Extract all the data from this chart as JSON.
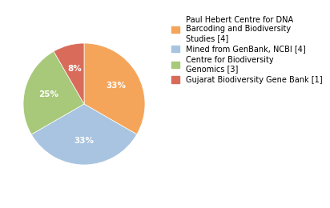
{
  "legend_labels": [
    "Paul Hebert Centre for DNA\nBarcoding and Biodiversity\nStudies [4]",
    "Mined from GenBank, NCBI [4]",
    "Centre for Biodiversity\nGenomics [3]",
    "Gujarat Biodiversity Gene Bank [1]"
  ],
  "values": [
    4,
    4,
    3,
    1
  ],
  "colors": [
    "#F5A55A",
    "#A8C4E0",
    "#A8C87A",
    "#D96B5A"
  ],
  "pct_labels": [
    "33%",
    "33%",
    "25%",
    "8%"
  ],
  "background_color": "#ffffff",
  "startangle": 90,
  "label_fontsize": 7.5,
  "legend_fontsize": 7.0
}
